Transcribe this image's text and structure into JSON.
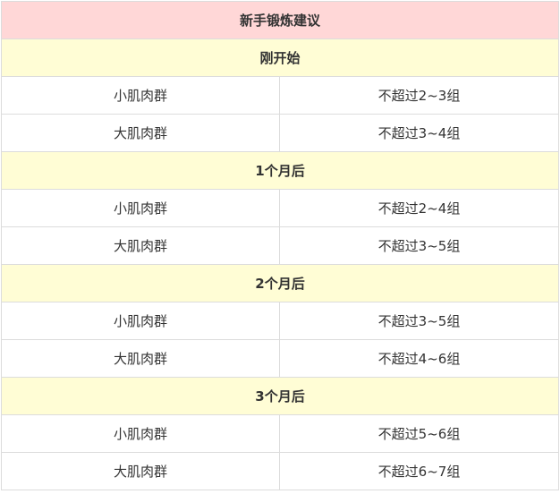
{
  "title": "新手锻炼建议",
  "colors": {
    "header_bg": "#ffd7d7",
    "section_bg": "#fffdd5"
  },
  "sections": [
    {
      "label": "刚开始",
      "rows": [
        [
          "小肌肉群",
          "不超过2~3组"
        ],
        [
          "大肌肉群",
          "不超过3~4组"
        ]
      ]
    },
    {
      "label": "1个月后",
      "rows": [
        [
          "小肌肉群",
          "不超过2~4组"
        ],
        [
          "大肌肉群",
          "不超过3~5组"
        ]
      ]
    },
    {
      "label": "2个月后",
      "rows": [
        [
          "小肌肉群",
          "不超过3~5组"
        ],
        [
          "大肌肉群",
          "不超过4~6组"
        ]
      ]
    },
    {
      "label": "3个月后",
      "rows": [
        [
          "小肌肉群",
          "不超过5~6组"
        ],
        [
          "大肌肉群",
          "不超过6~7组"
        ]
      ]
    }
  ]
}
